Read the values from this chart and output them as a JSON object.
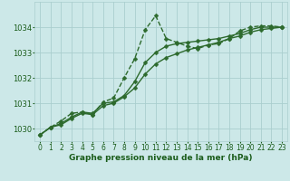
{
  "xlabel": "Graphe pression niveau de la mer (hPa)",
  "xlim": [
    -0.5,
    23.5
  ],
  "ylim": [
    1029.5,
    1035.0
  ],
  "yticks": [
    1030,
    1031,
    1032,
    1033,
    1034
  ],
  "xticks": [
    0,
    1,
    2,
    3,
    4,
    5,
    6,
    7,
    8,
    9,
    10,
    11,
    12,
    13,
    14,
    15,
    16,
    17,
    18,
    19,
    20,
    21,
    22,
    23
  ],
  "bg_color": "#cce8e8",
  "grid_color": "#aacece",
  "line_color": "#2d6a2d",
  "series1_volatile": {
    "x": [
      0,
      1,
      2,
      3,
      4,
      5,
      6,
      7,
      8,
      9,
      10,
      11,
      12,
      13,
      14,
      15,
      16,
      17,
      18,
      19,
      20,
      21,
      22,
      23
    ],
    "y": [
      1029.75,
      1030.05,
      1030.3,
      1030.6,
      1030.65,
      1030.55,
      1031.05,
      1031.2,
      1032.0,
      1032.75,
      1033.9,
      1034.45,
      1033.55,
      1033.4,
      1033.25,
      1033.15,
      1033.3,
      1033.35,
      1033.55,
      1033.85,
      1034.0,
      1034.05,
      1034.05,
      1034.0
    ],
    "marker": "D",
    "markersize": 2.5,
    "linewidth": 1.0
  },
  "series2_gradual1": {
    "x": [
      0,
      1,
      2,
      3,
      4,
      5,
      6,
      7,
      8,
      9,
      10,
      11,
      12,
      13,
      14,
      15,
      16,
      17,
      18,
      19,
      20,
      21,
      22,
      23
    ],
    "y": [
      1029.75,
      1030.05,
      1030.2,
      1030.45,
      1030.65,
      1030.6,
      1031.0,
      1031.05,
      1031.3,
      1031.85,
      1032.6,
      1033.0,
      1033.25,
      1033.35,
      1033.4,
      1033.45,
      1033.5,
      1033.55,
      1033.65,
      1033.75,
      1033.9,
      1034.0,
      1034.0,
      1034.0
    ],
    "marker": "D",
    "markersize": 2.5,
    "linewidth": 1.0
  },
  "series3_gradual2": {
    "x": [
      0,
      1,
      2,
      3,
      4,
      5,
      6,
      7,
      8,
      9,
      10,
      11,
      12,
      13,
      14,
      15,
      16,
      17,
      18,
      19,
      20,
      21,
      22,
      23
    ],
    "y": [
      1029.75,
      1030.05,
      1030.15,
      1030.4,
      1030.6,
      1030.55,
      1030.9,
      1031.0,
      1031.25,
      1031.6,
      1032.15,
      1032.55,
      1032.8,
      1032.95,
      1033.1,
      1033.2,
      1033.3,
      1033.4,
      1033.55,
      1033.65,
      1033.8,
      1033.9,
      1033.95,
      1034.0
    ],
    "marker": "D",
    "markersize": 2.5,
    "linewidth": 1.0
  },
  "font_color": "#1a5c1a",
  "label_fontsize": 6.5,
  "tick_fontsize": 5.5,
  "ytick_fontsize": 6.0
}
